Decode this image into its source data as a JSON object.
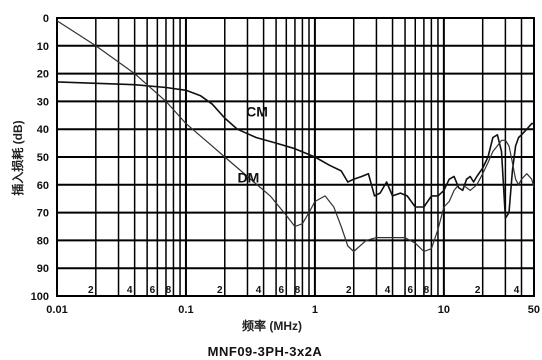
{
  "chart_data": {
    "type": "line",
    "title": "MNF09-3PH-3x2A",
    "xlabel": "频率 (MHz)",
    "ylabel": "插入损耗 (dB)",
    "x_scale": "log",
    "xlim": [
      0.01,
      50
    ],
    "ylim": [
      0,
      100
    ],
    "y_inverted": true,
    "grid": true,
    "x_major_ticks": [
      "0.01",
      "0.1",
      "1",
      "10",
      "50"
    ],
    "x_minor_labels": [
      "2",
      "4",
      "6",
      "8"
    ],
    "y_ticks": [
      "0",
      "10",
      "20",
      "30",
      "40",
      "50",
      "60",
      "70",
      "80",
      "90",
      "100"
    ],
    "series": [
      {
        "name": "CM",
        "points": [
          [
            0.01,
            23
          ],
          [
            0.02,
            23.5
          ],
          [
            0.04,
            24
          ],
          [
            0.07,
            25
          ],
          [
            0.1,
            26
          ],
          [
            0.13,
            28
          ],
          [
            0.16,
            31
          ],
          [
            0.2,
            36
          ],
          [
            0.25,
            40
          ],
          [
            0.35,
            43
          ],
          [
            0.5,
            45
          ],
          [
            0.7,
            47
          ],
          [
            1.0,
            50
          ],
          [
            1.3,
            53
          ],
          [
            1.6,
            55
          ],
          [
            1.8,
            59
          ],
          [
            2.0,
            58
          ],
          [
            2.3,
            57
          ],
          [
            2.6,
            56
          ],
          [
            2.9,
            64
          ],
          [
            3.2,
            63
          ],
          [
            3.6,
            59
          ],
          [
            4.0,
            64
          ],
          [
            4.6,
            63
          ],
          [
            5.2,
            64
          ],
          [
            6.0,
            68
          ],
          [
            7.0,
            68
          ],
          [
            8.0,
            64
          ],
          [
            9.0,
            64
          ],
          [
            10.0,
            62
          ],
          [
            11.0,
            58
          ],
          [
            12.0,
            57
          ],
          [
            13.0,
            61
          ],
          [
            14.0,
            62
          ],
          [
            15.0,
            58
          ],
          [
            16.0,
            57
          ],
          [
            17.0,
            59
          ],
          [
            18.0,
            57
          ],
          [
            20.0,
            54
          ],
          [
            22.0,
            50
          ],
          [
            24.0,
            43
          ],
          [
            26.0,
            42
          ],
          [
            28.0,
            48
          ],
          [
            30.0,
            72
          ],
          [
            32.0,
            70
          ],
          [
            34.0,
            55
          ],
          [
            36.0,
            46
          ],
          [
            38.0,
            43
          ],
          [
            40.0,
            42
          ],
          [
            44.0,
            40
          ],
          [
            48.0,
            38
          ],
          [
            50.0,
            38
          ]
        ]
      },
      {
        "name": "DM",
        "points": [
          [
            0.01,
            1
          ],
          [
            0.02,
            10
          ],
          [
            0.04,
            20
          ],
          [
            0.07,
            30
          ],
          [
            0.1,
            38
          ],
          [
            0.15,
            45
          ],
          [
            0.2,
            50
          ],
          [
            0.3,
            57
          ],
          [
            0.45,
            64
          ],
          [
            0.6,
            71
          ],
          [
            0.7,
            75
          ],
          [
            0.8,
            74
          ],
          [
            0.9,
            70
          ],
          [
            1.0,
            66
          ],
          [
            1.2,
            64
          ],
          [
            1.4,
            68
          ],
          [
            1.6,
            75
          ],
          [
            1.8,
            82
          ],
          [
            2.0,
            84
          ],
          [
            2.5,
            80
          ],
          [
            3.0,
            79
          ],
          [
            4.0,
            79
          ],
          [
            5.0,
            79
          ],
          [
            6.0,
            81
          ],
          [
            7.0,
            84
          ],
          [
            8.0,
            83
          ],
          [
            9.0,
            76
          ],
          [
            10.0,
            68
          ],
          [
            11.0,
            66
          ],
          [
            12.0,
            62
          ],
          [
            13.0,
            60
          ],
          [
            14.0,
            60
          ],
          [
            16.0,
            62
          ],
          [
            18.0,
            60
          ],
          [
            20.0,
            56
          ],
          [
            22.0,
            52
          ],
          [
            24.0,
            48
          ],
          [
            26.0,
            46
          ],
          [
            28.0,
            44
          ],
          [
            30.0,
            44
          ],
          [
            32.0,
            46
          ],
          [
            34.0,
            52
          ],
          [
            36.0,
            58
          ],
          [
            38.0,
            60
          ],
          [
            40.0,
            58
          ],
          [
            44.0,
            56
          ],
          [
            48.0,
            58
          ],
          [
            50.0,
            61
          ]
        ]
      }
    ]
  }
}
